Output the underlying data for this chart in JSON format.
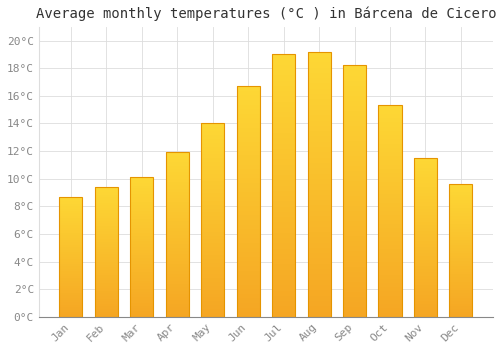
{
  "title": "Average monthly temperatures (°C ) in Bárcena de Cicero",
  "months": [
    "Jan",
    "Feb",
    "Mar",
    "Apr",
    "May",
    "Jun",
    "Jul",
    "Aug",
    "Sep",
    "Oct",
    "Nov",
    "Dec"
  ],
  "values": [
    8.7,
    9.4,
    10.1,
    11.9,
    14.0,
    16.7,
    19.0,
    19.2,
    18.2,
    15.3,
    11.5,
    9.6
  ],
  "bar_color_bottom": "#F5A623",
  "bar_color_top": "#FDD835",
  "bar_edge_color": "#E59400",
  "background_color": "#FFFFFF",
  "grid_color": "#DDDDDD",
  "text_color": "#888888",
  "title_color": "#333333",
  "ylim": [
    0,
    21
  ],
  "ytick_step": 2,
  "title_fontsize": 10,
  "tick_fontsize": 8,
  "font_family": "monospace"
}
